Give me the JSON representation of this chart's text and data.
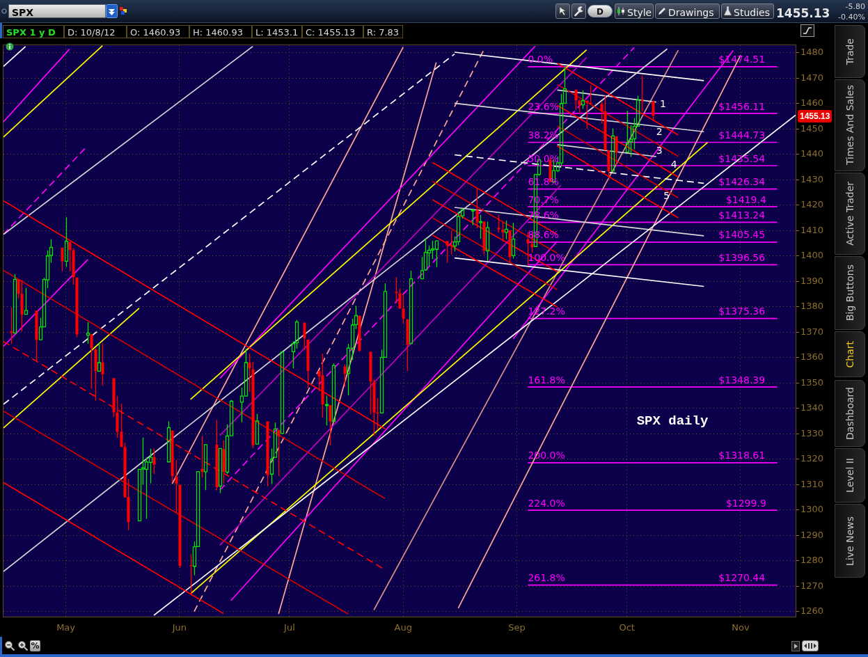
{
  "chart_data": {
    "type": "candlestick",
    "title": "SPX daily",
    "annotations": [
      "SPX",
      "D",
      "Style",
      "Drawings",
      "Studies",
      "1455.13",
      "-5.80",
      "-0.40%",
      "SPX 1 y D",
      "D: 10/8/12",
      "O: 1460.93",
      "H: 1460.93",
      "L: 1453.1",
      "C: 1455.13",
      "R: 7.83",
      "Trade",
      "Times And Sales",
      "Active Trader",
      "Big Buttons",
      "Chart",
      "Dashboard",
      "Level II",
      "Live News",
      "%",
      "1455.13",
      {
        "text": "0.0%",
        "x": "--09-04",
        "y": 1474.51
      },
      {
        "text": "23.6%",
        "x": "--09-04",
        "y": 1456.11
      },
      {
        "text": "38.2%",
        "x": "--09-04",
        "y": 1444.73
      },
      {
        "text": "50.0%",
        "x": "--09-04",
        "y": 1435.54
      },
      {
        "text": "61.8%",
        "x": "--09-04",
        "y": 1426.34
      },
      {
        "text": "70.7%",
        "x": "--09-04",
        "y": 1419.4
      },
      {
        "text": "78.6%",
        "x": "--09-04",
        "y": 1413.24
      },
      {
        "text": "88.6%",
        "x": "--09-04",
        "y": 1405.45
      },
      {
        "text": "100.0%",
        "x": "--09-04",
        "y": 1396.56
      },
      {
        "text": "127.2%",
        "x": "--09-04",
        "y": 1375.36
      },
      {
        "text": "161.8%",
        "x": "--09-04",
        "y": 1348.39
      },
      {
        "text": "200.0%",
        "x": "--09-04",
        "y": 1318.61
      },
      {
        "text": "224.0%",
        "x": "--09-04",
        "y": 1299.9
      },
      {
        "text": "261.8%",
        "x": "--09-04",
        "y": 1270.44
      },
      {
        "text": "$1474.51",
        "x": "--10-26",
        "y": 1474.51
      },
      {
        "text": "$1456.11",
        "x": "--10-26",
        "y": 1456.11
      },
      {
        "text": "$1444.73",
        "x": "--10-26",
        "y": 1444.73
      },
      {
        "text": "$1435.54",
        "x": "--10-26",
        "y": 1435.54
      },
      {
        "text": "$1426.34",
        "x": "--10-26",
        "y": 1426.34
      },
      {
        "text": "$1419.4",
        "x": "--10-28",
        "y": 1419.4
      },
      {
        "text": "$1413.24",
        "x": "--10-26",
        "y": 1413.24
      },
      {
        "text": "$1405.45",
        "x": "--10-26",
        "y": 1405.45
      },
      {
        "text": "$1396.56",
        "x": "--10-26",
        "y": 1396.56
      },
      {
        "text": "$1375.36",
        "x": "--10-26",
        "y": 1375.36
      },
      {
        "text": "$1348.39",
        "x": "--10-26",
        "y": 1348.39
      },
      {
        "text": "$1318.61",
        "x": "--10-26",
        "y": 1318.61
      },
      {
        "text": "$1299.9",
        "x": "--10-28",
        "y": 1299.9
      },
      {
        "text": "$1270.44",
        "x": "--10-26",
        "y": 1270.44
      },
      {
        "text": "1",
        "x": "--10-10",
        "y": 1457.0
      },
      {
        "text": "2",
        "x": "--10-09",
        "y": 1446.0
      },
      {
        "text": "3",
        "x": "--10-09",
        "y": 1438.7
      },
      {
        "text": "4",
        "x": "--10-13",
        "y": 1433.2
      },
      {
        "text": "5",
        "x": "--10-11",
        "y": 1420.8
      }
    ],
    "x": [
      "--04-16",
      "--04-17",
      "--04-18",
      "--04-19",
      "--04-20",
      "--04-23",
      "--04-24",
      "--04-25",
      "--04-26",
      "--04-27",
      "--04-30",
      "--05-01",
      "--05-02",
      "--05-03",
      "--05-04",
      "--05-07",
      "--05-08",
      "--05-09",
      "--05-10",
      "--05-11",
      "--05-14",
      "--05-15",
      "--05-16",
      "--05-17",
      "--05-18",
      "--05-21",
      "--05-22",
      "--05-23",
      "--05-24",
      "--05-25",
      "--05-29",
      "--05-30",
      "--05-31",
      "--06-01",
      "--06-04",
      "--06-05",
      "--06-06",
      "--06-07",
      "--06-08",
      "--06-11",
      "--06-12",
      "--06-13",
      "--06-14",
      "--06-15",
      "--06-18",
      "--06-19",
      "--06-20",
      "--06-21",
      "--06-22",
      "--06-25",
      "--06-26",
      "--06-27",
      "--06-28",
      "--06-29",
      "--07-02",
      "--07-03",
      "--07-05",
      "--07-06",
      "--07-09",
      "--07-10",
      "--07-11",
      "--07-12",
      "--07-13",
      "--07-16",
      "--07-17",
      "--07-18",
      "--07-19",
      "--07-20",
      "--07-23",
      "--07-24",
      "--07-25",
      "--07-26",
      "--07-27",
      "--07-30",
      "--07-31",
      "--08-01",
      "--08-02",
      "--08-03",
      "--08-06",
      "--08-07",
      "--08-08",
      "--08-09",
      "--08-10",
      "--08-13",
      "--08-14",
      "--08-15",
      "--08-16",
      "--08-17",
      "--08-20",
      "--08-21",
      "--08-22",
      "--08-23",
      "--08-24",
      "--08-27",
      "--08-28",
      "--08-29",
      "--08-30",
      "--08-31",
      "--09-04",
      "--09-05",
      "--09-06",
      "--09-07",
      "--09-10",
      "--09-11",
      "--09-12",
      "--09-13",
      "--09-14",
      "--09-17",
      "--09-18",
      "--09-19",
      "--09-20",
      "--09-21",
      "--09-24",
      "--09-25",
      "--09-26",
      "--09-27",
      "--09-28",
      "--10-01",
      "--10-02",
      "--10-03",
      "--10-04",
      "--10-05",
      "--10-08"
    ],
    "ohlc": [
      [
        1370.3,
        1379.7,
        1365.4,
        1369.6
      ],
      [
        1369.6,
        1392.8,
        1369.6,
        1390.8
      ],
      [
        1390.8,
        1390.8,
        1383.3,
        1385.1
      ],
      [
        1385.1,
        1390.5,
        1370.3,
        1376.9
      ],
      [
        1377.0,
        1387.4,
        1377.0,
        1378.5
      ],
      [
        1378.5,
        1378.5,
        1358.8,
        1366.9
      ],
      [
        1367.0,
        1375.6,
        1366.8,
        1372.0
      ],
      [
        1372.1,
        1391.4,
        1372.1,
        1390.7
      ],
      [
        1390.6,
        1402.1,
        1387.3,
        1400.0
      ],
      [
        1400.2,
        1406.6,
        1397.3,
        1403.4
      ],
      [
        1403.3,
        1403.3,
        1394.0,
        1397.9
      ],
      [
        1397.9,
        1415.3,
        1395.7,
        1405.8
      ],
      [
        1405.5,
        1405.5,
        1393.9,
        1402.3
      ],
      [
        1402.3,
        1403.1,
        1388.7,
        1391.6
      ],
      [
        1391.5,
        1391.5,
        1368.0,
        1369.1
      ],
      [
        1368.8,
        1373.9,
        1365.4,
        1369.6
      ],
      [
        1369.2,
        1369.2,
        1347.8,
        1363.7
      ],
      [
        1363.2,
        1363.7,
        1343.1,
        1354.6
      ],
      [
        1354.6,
        1365.9,
        1354.6,
        1358.0
      ],
      [
        1358.1,
        1365.7,
        1348.9,
        1353.4
      ],
      [
        1351.9,
        1351.9,
        1336.6,
        1338.4
      ],
      [
        1338.4,
        1344.9,
        1328.4,
        1330.7
      ],
      [
        1330.8,
        1341.8,
        1324.8,
        1324.8
      ],
      [
        1324.8,
        1326.4,
        1304.9,
        1304.9
      ],
      [
        1305.1,
        1312.2,
        1292.0,
        1295.2
      ],
      [
        1295.7,
        1316.0,
        1295.7,
        1316.0
      ],
      [
        1316.1,
        1328.5,
        1310.0,
        1316.6
      ],
      [
        1316.0,
        1320.7,
        1296.5,
        1318.9
      ],
      [
        1318.7,
        1324.1,
        1310.5,
        1320.7
      ],
      [
        1320.8,
        1324.2,
        1314.2,
        1317.8
      ],
      [
        1318.9,
        1334.9,
        1318.9,
        1332.4
      ],
      [
        1331.3,
        1331.3,
        1310.8,
        1313.3
      ],
      [
        1313.1,
        1319.7,
        1298.9,
        1310.3
      ],
      [
        1309.9,
        1309.9,
        1277.3,
        1278.0
      ],
      [
        1278.3,
        1282.6,
        1266.7,
        1278.2
      ],
      [
        1277.8,
        1287.6,
        1274.2,
        1285.5
      ],
      [
        1285.6,
        1315.1,
        1285.6,
        1315.1
      ],
      [
        1316.2,
        1329.1,
        1312.7,
        1315.0
      ],
      [
        1315.0,
        1325.8,
        1307.8,
        1325.7
      ],
      [
        1325.7,
        1335.5,
        1307.7,
        1308.9
      ],
      [
        1309.4,
        1324.3,
        1306.6,
        1324.2
      ],
      [
        1324.0,
        1327.3,
        1310.5,
        1314.9
      ],
      [
        1314.9,
        1333.7,
        1314.1,
        1329.1
      ],
      [
        1329.2,
        1343.3,
        1329.2,
        1342.8
      ],
      [
        1342.4,
        1348.2,
        1334.5,
        1344.8
      ],
      [
        1344.8,
        1363.5,
        1344.8,
        1358.0
      ],
      [
        1358.0,
        1361.6,
        1346.5,
        1355.7
      ],
      [
        1355.4,
        1358.3,
        1324.4,
        1325.5
      ],
      [
        1325.9,
        1337.8,
        1325.9,
        1335.0
      ],
      [
        1334.9,
        1334.9,
        1309.3,
        1313.7
      ],
      [
        1314.1,
        1324.2,
        1310.3,
        1320.0
      ],
      [
        1320.7,
        1334.4,
        1320.7,
        1331.9
      ],
      [
        1331.5,
        1331.5,
        1313.3,
        1329.0
      ],
      [
        1330.1,
        1362.2,
        1330.1,
        1362.2
      ],
      [
        1362.3,
        1366.4,
        1355.7,
        1365.5
      ],
      [
        1365.8,
        1374.8,
        1363.5,
        1374.0
      ],
      [
        1373.7,
        1373.9,
        1363.0,
        1367.6
      ],
      [
        1367.1,
        1367.1,
        1348.0,
        1354.7
      ],
      [
        1354.7,
        1354.9,
        1346.7,
        1352.5
      ],
      [
        1353.0,
        1361.5,
        1336.3,
        1341.5
      ],
      [
        1341.4,
        1345.0,
        1333.3,
        1341.5
      ],
      [
        1341.3,
        1341.3,
        1325.4,
        1334.8
      ],
      [
        1334.8,
        1357.7,
        1334.8,
        1356.8
      ],
      [
        1356.5,
        1357.3,
        1348.5,
        1353.6
      ],
      [
        1353.7,
        1365.4,
        1345.1,
        1363.7
      ],
      [
        1363.6,
        1375.3,
        1359.0,
        1372.8
      ],
      [
        1373.0,
        1380.4,
        1371.2,
        1376.5
      ],
      [
        1376.5,
        1376.5,
        1362.2,
        1362.7
      ],
      [
        1362.3,
        1362.3,
        1337.6,
        1350.5
      ],
      [
        1350.5,
        1351.5,
        1329.2,
        1338.3
      ],
      [
        1338.4,
        1344.0,
        1331.5,
        1337.9
      ],
      [
        1338.2,
        1363.1,
        1338.2,
        1360.0
      ],
      [
        1360.1,
        1389.2,
        1360.1,
        1386.0
      ],
      [
        1385.9,
        1391.7,
        1381.4,
        1385.3
      ],
      [
        1385.3,
        1387.2,
        1379.2,
        1379.3
      ],
      [
        1379.3,
        1385.0,
        1373.4,
        1375.3
      ],
      [
        1375.1,
        1375.1,
        1354.7,
        1365.0
      ],
      [
        1365.5,
        1394.2,
        1365.5,
        1391.0
      ],
      [
        1391.0,
        1399.6,
        1391.0,
        1394.2
      ],
      [
        1394.5,
        1407.1,
        1394.5,
        1401.4
      ],
      [
        1401.2,
        1404.1,
        1396.1,
        1402.2
      ],
      [
        1402.3,
        1406.0,
        1398.8,
        1402.8
      ],
      [
        1402.6,
        1406.0,
        1395.6,
        1405.9
      ],
      [
        1405.9,
        1405.9,
        1397.3,
        1404.1
      ],
      [
        1404.4,
        1410.0,
        1400.6,
        1403.9
      ],
      [
        1403.9,
        1407.7,
        1401.8,
        1405.5
      ],
      [
        1405.6,
        1417.4,
        1404.2,
        1415.5
      ],
      [
        1415.8,
        1418.7,
        1414.7,
        1418.2
      ],
      [
        1417.9,
        1418.1,
        1412.1,
        1418.1
      ],
      [
        1418.1,
        1426.7,
        1410.9,
        1413.2
      ],
      [
        1413.1,
        1416.1,
        1406.8,
        1413.5
      ],
      [
        1413.5,
        1413.5,
        1400.5,
        1402.1
      ],
      [
        1402.0,
        1413.5,
        1398.0,
        1411.1
      ],
      [
        1411.1,
        1416.2,
        1409.1,
        1410.4
      ],
      [
        1410.4,
        1413.6,
        1405.6,
        1409.3
      ],
      [
        1409.3,
        1414.0,
        1406.6,
        1410.5
      ],
      [
        1410.1,
        1410.1,
        1397.0,
        1399.5
      ],
      [
        1400.1,
        1413.1,
        1399.0,
        1406.6
      ],
      [
        1406.5,
        1409.3,
        1396.6,
        1404.9
      ],
      [
        1404.9,
        1408.8,
        1401.3,
        1403.4
      ],
      [
        1403.7,
        1432.1,
        1403.7,
        1432.1
      ],
      [
        1432.1,
        1437.9,
        1431.5,
        1437.9
      ],
      [
        1437.9,
        1438.7,
        1429.0,
        1429.1
      ],
      [
        1429.1,
        1437.8,
        1429.1,
        1433.6
      ],
      [
        1433.6,
        1439.2,
        1433.0,
        1436.6
      ],
      [
        1436.6,
        1463.8,
        1435.3,
        1460.0
      ],
      [
        1460.1,
        1474.5,
        1460.1,
        1465.8
      ],
      [
        1465.4,
        1465.6,
        1457.6,
        1461.2
      ],
      [
        1461.2,
        1461.5,
        1456.1,
        1459.3
      ],
      [
        1459.5,
        1465.2,
        1457.9,
        1461.1
      ],
      [
        1461.1,
        1461.2,
        1450.0,
        1460.3
      ],
      [
        1460.3,
        1467.1,
        1459.5,
        1460.2
      ],
      [
        1459.8,
        1460.7,
        1452.1,
        1456.9
      ],
      [
        1456.9,
        1463.2,
        1441.6,
        1441.6
      ],
      [
        1441.6,
        1441.6,
        1430.5,
        1433.3
      ],
      [
        1433.4,
        1450.2,
        1433.4,
        1447.2
      ],
      [
        1447.1,
        1447.1,
        1435.6,
        1440.7
      ],
      [
        1440.9,
        1457.1,
        1440.9,
        1444.5
      ],
      [
        1445.0,
        1451.5,
        1439.0,
        1445.8
      ],
      [
        1446.1,
        1454.3,
        1442.0,
        1451.0
      ],
      [
        1451.1,
        1463.1,
        1451.1,
        1461.4
      ],
      [
        1461.4,
        1471.0,
        1456.9,
        1460.9
      ],
      [
        1460.93,
        1460.93,
        1453.1,
        1455.13
      ]
    ],
    "colors": [
      "#ff0000",
      "#00e600",
      "#ff0000",
      "#ff0000",
      "#00e600",
      "#ff0000",
      "#00e600",
      "#00e600",
      "#00e600",
      "#00e600",
      "#ff0000",
      "#00e600",
      "#ff0000",
      "#ff0000",
      "#ff0000",
      "#00e600",
      "#ff0000",
      "#ff0000",
      "#00e600",
      "#ff0000",
      "#ff0000",
      "#ff0000",
      "#ff0000",
      "#ff0000",
      "#ff0000",
      "#00e600",
      "#00e600",
      "#00e600",
      "#00e600",
      "#ff0000",
      "#00e600",
      "#ff0000",
      "#ff0000",
      "#ff0000",
      "#ff0000",
      "#00e600",
      "#00e600",
      "#ff0000",
      "#00e600",
      "#ff0000",
      "#00e600",
      "#ff0000",
      "#00e600",
      "#00e600",
      "#00e600",
      "#00e600",
      "#ff0000",
      "#ff0000",
      "#00e600",
      "#ff0000",
      "#00e600",
      "#00e600",
      "#ff0000",
      "#00e600",
      "#00e600",
      "#00e600",
      "#ff0000",
      "#ff0000",
      "#ff0000",
      "#ff0000",
      "#00e600",
      "#ff0000",
      "#00e600",
      "#ff0000",
      "#00e600",
      "#00e600",
      "#00e600",
      "#ff0000",
      "#ff0000",
      "#ff0000",
      "#ff0000",
      "#00e600",
      "#00e600",
      "#ff0000",
      "#ff0000",
      "#ff0000",
      "#ff0000",
      "#00e600",
      "#00e600",
      "#00e600",
      "#00e600",
      "#00e600",
      "#00e600",
      "#ff0000",
      "#ff0000",
      "#00e600",
      "#00e600",
      "#00e600",
      "#00e600",
      "#ff0000",
      "#00e600",
      "#ff0000",
      "#00e600",
      "#ff0000",
      "#ff0000",
      "#00e600",
      "#ff0000",
      "#00e600",
      "#ff0000",
      "#ff0000",
      "#00e600",
      "#00e600",
      "#ff0000",
      "#00e600",
      "#00e600",
      "#00e600",
      "#00e600",
      "#ff0000",
      "#ff0000",
      "#00e600",
      "#ff0000",
      "#ff0000",
      "#ff0000",
      "#ff0000",
      "#ff0000",
      "#00e600",
      "#ff0000",
      "#00e600",
      "#00e600",
      "#00e600",
      "#00e600",
      "#ff0000",
      "#ff0000"
    ],
    "series": [
      {
        "type": "line",
        "color": "#ff0000",
        "x": [
          "--04-14",
          "--07-27"
        ],
        "values": [
          1421.7,
          1332.0
        ]
      },
      {
        "type": "line",
        "color": "#ff0000",
        "line_style": "dashed",
        "x": [
          "--04-14",
          "--07-27"
        ],
        "values": [
          1366.3,
          1276.5
        ]
      },
      {
        "type": "line",
        "color": "#ff0000",
        "x": [
          "--04-14",
          "--06-13"
        ],
        "values": [
          1310.8,
          1259.2
        ]
      },
      {
        "type": "line",
        "color": "#cc0000",
        "x": [
          "--04-14",
          "--07-27"
        ],
        "values": [
          1394.3,
          1304.5
        ]
      },
      {
        "type": "line",
        "color": "#cc0000",
        "x": [
          "--04-14",
          "--07-17"
        ],
        "values": [
          1338.9,
          1259.0
        ]
      },
      {
        "type": "line",
        "color": "#ff0000",
        "x": [
          "--08-09",
          "--09-12"
        ],
        "values": [
          1436.8,
          1408.5
        ]
      },
      {
        "type": "line",
        "color": "#cc0000",
        "x": [
          "--08-09",
          "--09-12"
        ],
        "values": [
          1429.4,
          1401.1
        ]
      },
      {
        "type": "line",
        "color": "#ff0000",
        "x": [
          "--08-09",
          "--09-12"
        ],
        "values": [
          1422.1,
          1393.8
        ]
      },
      {
        "type": "line",
        "color": "#cc0000",
        "x": [
          "--08-09",
          "--09-12"
        ],
        "values": [
          1415.0,
          1386.7
        ]
      },
      {
        "type": "line",
        "color": "#ff0000",
        "x": [
          "--08-09",
          "--09-12"
        ],
        "values": [
          1408.2,
          1379.9
        ]
      },
      {
        "type": "line",
        "color": "#ff0000",
        "x": [
          "--09-12",
          "--10-15"
        ],
        "values": [
          1475.9,
          1447.6
        ]
      },
      {
        "type": "line",
        "color": "#cc0000",
        "x": [
          "--09-12",
          "--10-15"
        ],
        "values": [
          1467.5,
          1439.2
        ]
      },
      {
        "type": "line",
        "color": "#ff0000",
        "x": [
          "--09-12",
          "--10-15"
        ],
        "values": [
          1459.3,
          1431.0
        ]
      },
      {
        "type": "line",
        "color": "#cc0000",
        "x": [
          "--09-12",
          "--10-15"
        ],
        "values": [
          1451.2,
          1422.9
        ]
      },
      {
        "type": "line",
        "color": "#ff0000",
        "x": [
          "--09-12",
          "--10-15"
        ],
        "values": [
          1443.3,
          1415.0
        ]
      },
      {
        "type": "line",
        "color": "#ffffff",
        "x": [
          "--04-14",
          "--04-20"
        ],
        "values": [
          1474.6,
          1482.4
        ]
      },
      {
        "type": "line",
        "color": "#ffffff",
        "line_style": "dashed",
        "x": [
          "--04-14",
          "--08-15"
        ],
        "values": [
          1341.6,
          1479.5
        ]
      },
      {
        "type": "line",
        "color": "#d8d8d8",
        "x": [
          "--04-14",
          "--06-21"
        ],
        "values": [
          1408.5,
          1482.5
        ]
      },
      {
        "type": "line",
        "color": "#d8d8d8",
        "x": [
          "--04-14",
          "--10-12"
        ],
        "values": [
          1275.8,
          1481.5
        ]
      },
      {
        "type": "line",
        "color": "#ffffff",
        "x": [
          "--05-25",
          "--11-16"
        ],
        "values": [
          1258.5,
          1455.4
        ]
      },
      {
        "type": "line",
        "color": "#ffffff",
        "x": [
          "--08-15",
          "--10-22"
        ],
        "values": [
          1480.2,
          1469.0
        ]
      },
      {
        "type": "line",
        "color": "#d8d8d8",
        "x": [
          "--08-15",
          "--10-22"
        ],
        "values": [
          1460.1,
          1448.9
        ]
      },
      {
        "type": "line",
        "color": "#ffffff",
        "line_style": "dashed",
        "x": [
          "--08-15",
          "--10-22"
        ],
        "values": [
          1439.8,
          1428.6
        ]
      },
      {
        "type": "line",
        "color": "#d8d8d8",
        "x": [
          "--08-15",
          "--10-22"
        ],
        "values": [
          1419.1,
          1407.9
        ]
      },
      {
        "type": "line",
        "color": "#ffffff",
        "x": [
          "--08-15",
          "--10-22"
        ],
        "values": [
          1399.2,
          1388.0
        ]
      },
      {
        "type": "line",
        "color": "#d8d8d8",
        "x": [
          "--09-12",
          "--10-09"
        ],
        "values": [
          1465.3,
          1460.6
        ]
      },
      {
        "type": "line",
        "color": "#d8d8d8",
        "x": [
          "--09-12",
          "--10-09"
        ],
        "values": [
          1443.8,
          1439.1
        ]
      },
      {
        "type": "line",
        "color": "#ffff00",
        "x": [
          "--04-14",
          "--05-11"
        ],
        "values": [
          1446.8,
          1482.8
        ]
      },
      {
        "type": "line",
        "color": "#ffff00",
        "x": [
          "--04-14",
          "--05-21"
        ],
        "values": [
          1332.3,
          1379.4
        ]
      },
      {
        "type": "line",
        "color": "#ffff00",
        "x": [
          "--06-04",
          "--09-20"
        ],
        "values": [
          1343.5,
          1481.1
        ]
      },
      {
        "type": "line",
        "color": "#ffff00",
        "x": [
          "--06-04",
          "--10-23"
        ],
        "values": [
          1267.0,
          1444.7
        ]
      },
      {
        "type": "line",
        "color": "#ff00ff",
        "x": [
          "--04-14",
          "--05-02"
        ],
        "values": [
          1452.8,
          1481.4
        ]
      },
      {
        "type": "line",
        "color": "#ff00ff",
        "line_style": "dashed",
        "x": [
          "--04-14",
          "--05-07"
        ],
        "values": [
          1408.5,
          1443.5
        ]
      },
      {
        "type": "line",
        "color": "#ff00ff",
        "x": [
          "--04-14",
          "--05-07"
        ],
        "values": [
          1364.4,
          1398.6
        ]
      },
      {
        "type": "line",
        "color": "#ff00ff",
        "x": [
          "--06-12",
          "--09-06"
        ],
        "values": [
          1351.8,
          1482.6
        ]
      },
      {
        "type": "line",
        "color": "#ff00ff",
        "line_style": "dashed",
        "x": [
          "--06-12",
          "--10-03"
        ],
        "values": [
          1307.8,
          1482.1
        ]
      },
      {
        "type": "line",
        "color": "#c000c0",
        "x": [
          "--06-12",
          "--09-20"
        ],
        "values": [
          1329.3,
          1478.1
        ]
      },
      {
        "type": "line",
        "color": "#c000c0",
        "x": [
          "--06-12",
          "--09-13"
        ],
        "values": [
          1286.1,
          1427.8
        ]
      },
      {
        "type": "line",
        "color": "#ff00ff",
        "x": [
          "--06-15",
          "--09-12"
        ],
        "values": [
          1264.3,
          1405.8
        ]
      },
      {
        "type": "line",
        "color": "#ff00ff",
        "x": [
          "--08-31",
          "--10-30"
        ],
        "values": [
          1367.4,
          1480.9
        ]
      },
      {
        "type": "line",
        "color": "#ffa898",
        "x": [
          "--05-30",
          "--08-01"
        ],
        "values": [
          1310.3,
          1482.2
        ]
      },
      {
        "type": "line",
        "color": "#ffa898",
        "line_style": "dashed",
        "x": [
          "--06-05",
          "--08-23"
        ],
        "values": [
          1260.0,
          1481.2
        ]
      },
      {
        "type": "line",
        "color": "#ffa898",
        "x": [
          "--06-28",
          "--08-10"
        ],
        "values": [
          1259.0,
          1476.2
        ]
      },
      {
        "type": "line",
        "color": "#ffa898",
        "x": [
          "--08-16",
          "--11-01"
        ],
        "values": [
          1261.3,
          1479.0
        ]
      },
      {
        "type": "line",
        "color": "#d89088",
        "x": [
          "--07-24",
          "--10-15"
        ],
        "values": [
          1260.6,
          1481.0
        ]
      },
      {
        "type": "line",
        "color": "#ff00ff",
        "x": [
          "--09-04",
          "--11-11"
        ],
        "values": [
          1474.51,
          1474.51
        ]
      },
      {
        "type": "line",
        "color": "#ff00ff",
        "x": [
          "--09-04",
          "--11-11"
        ],
        "values": [
          1456.11,
          1456.11
        ]
      },
      {
        "type": "line",
        "color": "#ff00ff",
        "x": [
          "--09-04",
          "--11-11"
        ],
        "values": [
          1444.73,
          1444.73
        ]
      },
      {
        "type": "line",
        "color": "#ff00ff",
        "x": [
          "--09-04",
          "--11-11"
        ],
        "values": [
          1435.54,
          1435.54
        ]
      },
      {
        "type": "line",
        "color": "#ff00ff",
        "x": [
          "--09-04",
          "--11-11"
        ],
        "values": [
          1426.34,
          1426.34
        ]
      },
      {
        "type": "line",
        "color": "#ff00ff",
        "x": [
          "--09-04",
          "--11-11"
        ],
        "values": [
          1419.4,
          1419.4
        ]
      },
      {
        "type": "line",
        "color": "#ff00ff",
        "x": [
          "--09-04",
          "--11-11"
        ],
        "values": [
          1413.24,
          1413.24
        ]
      },
      {
        "type": "line",
        "color": "#ff00ff",
        "x": [
          "--09-04",
          "--11-11"
        ],
        "values": [
          1405.45,
          1405.45
        ]
      },
      {
        "type": "line",
        "color": "#ff00ff",
        "x": [
          "--09-04",
          "--11-11"
        ],
        "values": [
          1396.56,
          1396.56
        ]
      },
      {
        "type": "line",
        "color": "#ff00ff",
        "x": [
          "--09-04",
          "--11-11"
        ],
        "values": [
          1375.36,
          1375.36
        ]
      },
      {
        "type": "line",
        "color": "#ff00ff",
        "x": [
          "--09-04",
          "--11-11"
        ],
        "values": [
          1348.39,
          1348.39
        ]
      },
      {
        "type": "line",
        "color": "#ff00ff",
        "x": [
          "--09-04",
          "--11-11"
        ],
        "values": [
          1318.61,
          1318.61
        ]
      },
      {
        "type": "line",
        "color": "#ff00ff",
        "x": [
          "--09-04",
          "--11-11"
        ],
        "values": [
          1299.9,
          1299.9
        ]
      },
      {
        "type": "line",
        "color": "#ff00ff",
        "x": [
          "--09-04",
          "--11-11"
        ],
        "values": [
          1270.44,
          1270.44
        ]
      }
    ],
    "xlim": [
      "--04-14",
      "--11-16"
    ],
    "xticks": [
      {
        "value": "--05-01",
        "label": "May"
      },
      {
        "value": "--06-01",
        "label": "Jun"
      },
      {
        "value": "--07-01",
        "label": "Jul"
      },
      {
        "value": "--08-01",
        "label": "Aug"
      },
      {
        "value": "--09-01",
        "label": "Sep"
      },
      {
        "value": "--10-01",
        "label": "Oct"
      },
      {
        "value": "--11-01",
        "label": "Nov"
      }
    ],
    "ylim": [
      1258,
      1483
    ],
    "yticks": [
      1260,
      1270,
      1280,
      1290,
      1300,
      1310,
      1320,
      1330,
      1340,
      1350,
      1360,
      1370,
      1380,
      1390,
      1400,
      1410,
      1420,
      1430,
      1440,
      1450,
      1460,
      1470,
      1480
    ],
    "grid": true
  }
}
